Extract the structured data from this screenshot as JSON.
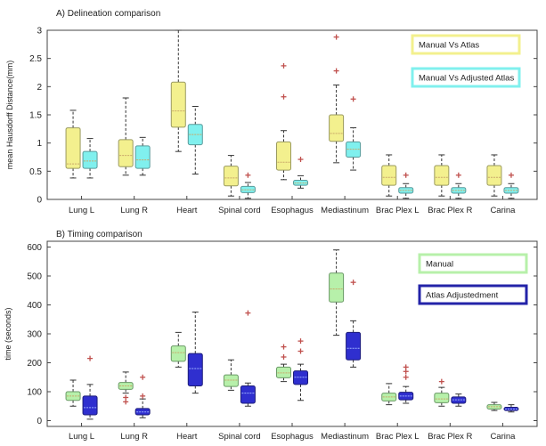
{
  "chart_data": [
    {
      "type": "boxplot",
      "title": "A) Delineation comparison",
      "xlabel": "",
      "ylabel": "mean Hausdorff Distance(mm)",
      "ylim": [
        0,
        3
      ],
      "yticks": [
        "0",
        "0.5",
        "1",
        "1.5",
        "2",
        "2.5",
        "3"
      ],
      "categories": [
        "Lung L",
        "Lung R",
        "Heart",
        "Spinal cord",
        "Esophagus",
        "Mediastinum",
        "Brac Plex L",
        "Brac Plex R",
        "Carina"
      ],
      "legend": {
        "position": "top-right"
      },
      "series": [
        {
          "name": "Manual Vs Atlas",
          "fill": "#f3f08e",
          "edge": "#9a9a60",
          "boxes": [
            {
              "whislo": 0.38,
              "q1": 0.55,
              "med": 0.63,
              "q3": 1.27,
              "whishi": 1.58,
              "fliers": []
            },
            {
              "whislo": 0.43,
              "q1": 0.58,
              "med": 0.78,
              "q3": 1.06,
              "whishi": 1.8,
              "fliers": []
            },
            {
              "whislo": 0.85,
              "q1": 1.28,
              "med": 1.57,
              "q3": 2.08,
              "whishi": 3.0,
              "fliers": []
            },
            {
              "whislo": 0.06,
              "q1": 0.24,
              "med": 0.38,
              "q3": 0.59,
              "whishi": 0.78,
              "fliers": []
            },
            {
              "whislo": 0.35,
              "q1": 0.52,
              "med": 0.66,
              "q3": 1.02,
              "whishi": 1.22,
              "fliers": [
                1.82,
                2.37
              ]
            },
            {
              "whislo": 0.65,
              "q1": 1.03,
              "med": 1.17,
              "q3": 1.5,
              "whishi": 2.03,
              "fliers": [
                2.28,
                2.88
              ]
            },
            {
              "whislo": 0.06,
              "q1": 0.25,
              "med": 0.39,
              "q3": 0.6,
              "whishi": 0.79,
              "fliers": []
            },
            {
              "whislo": 0.06,
              "q1": 0.25,
              "med": 0.39,
              "q3": 0.6,
              "whishi": 0.79,
              "fliers": []
            },
            {
              "whislo": 0.06,
              "q1": 0.25,
              "med": 0.39,
              "q3": 0.6,
              "whishi": 0.79,
              "fliers": []
            }
          ]
        },
        {
          "name": "Manual Vs Adjusted Atlas",
          "fill": "#80f0ee",
          "edge": "#5a9a9a",
          "boxes": [
            {
              "whislo": 0.38,
              "q1": 0.55,
              "med": 0.68,
              "q3": 0.85,
              "whishi": 1.08,
              "fliers": []
            },
            {
              "whislo": 0.43,
              "q1": 0.55,
              "med": 0.7,
              "q3": 0.95,
              "whishi": 1.1,
              "fliers": []
            },
            {
              "whislo": 0.45,
              "q1": 0.97,
              "med": 1.15,
              "q3": 1.33,
              "whishi": 1.65,
              "fliers": []
            },
            {
              "whislo": 0.02,
              "q1": 0.12,
              "med": 0.17,
              "q3": 0.23,
              "whishi": 0.3,
              "fliers": [
                0.43
              ]
            },
            {
              "whislo": 0.2,
              "q1": 0.25,
              "med": 0.29,
              "q3": 0.34,
              "whishi": 0.42,
              "fliers": [
                0.71
              ]
            },
            {
              "whislo": 0.52,
              "q1": 0.75,
              "med": 0.89,
              "q3": 1.02,
              "whishi": 1.27,
              "fliers": [
                1.78
              ]
            },
            {
              "whislo": 0.02,
              "q1": 0.11,
              "med": 0.16,
              "q3": 0.21,
              "whishi": 0.28,
              "fliers": [
                0.43
              ]
            },
            {
              "whislo": 0.02,
              "q1": 0.11,
              "med": 0.16,
              "q3": 0.21,
              "whishi": 0.28,
              "fliers": [
                0.43
              ]
            },
            {
              "whislo": 0.02,
              "q1": 0.11,
              "med": 0.16,
              "q3": 0.21,
              "whishi": 0.28,
              "fliers": [
                0.43
              ]
            }
          ]
        }
      ]
    },
    {
      "type": "boxplot",
      "title": "B) Timing comparison",
      "xlabel": "",
      "ylabel": "time (seconds)",
      "ylim": [
        -20,
        620
      ],
      "yticks": [
        "0",
        "100",
        "200",
        "300",
        "400",
        "500",
        "600"
      ],
      "categories": [
        "Lung L",
        "Lung R",
        "Heart",
        "Spinal cord",
        "Esophagus",
        "Mediastinum",
        "Brac Plex L",
        "Brac Plex R",
        "Carina"
      ],
      "legend": {
        "position": "top-right"
      },
      "series": [
        {
          "name": "Manual",
          "fill": "#b7f0aa",
          "edge": "#6a9a66",
          "boxes": [
            {
              "whislo": 50,
              "q1": 70,
              "med": 85,
              "q3": 100,
              "whishi": 140,
              "fliers": []
            },
            {
              "whislo": 95,
              "q1": 108,
              "med": 120,
              "q3": 132,
              "whishi": 168,
              "fliers": [
                65,
                80
              ]
            },
            {
              "whislo": 185,
              "q1": 205,
              "med": 235,
              "q3": 258,
              "whishi": 305,
              "fliers": []
            },
            {
              "whislo": 105,
              "q1": 118,
              "med": 140,
              "q3": 158,
              "whishi": 210,
              "fliers": []
            },
            {
              "whislo": 135,
              "q1": 148,
              "med": 165,
              "q3": 185,
              "whishi": 195,
              "fliers": [
                220,
                255
              ]
            },
            {
              "whislo": 295,
              "q1": 410,
              "med": 455,
              "q3": 510,
              "whishi": 590,
              "fliers": []
            },
            {
              "whislo": 55,
              "q1": 68,
              "med": 82,
              "q3": 95,
              "whishi": 128,
              "fliers": []
            },
            {
              "whislo": 50,
              "q1": 62,
              "med": 75,
              "q3": 95,
              "whishi": 115,
              "fliers": [
                135
              ]
            },
            {
              "whislo": 35,
              "q1": 40,
              "med": 48,
              "q3": 55,
              "whishi": 63,
              "fliers": []
            }
          ]
        },
        {
          "name": "Atlas Adjustedment",
          "fill": "#2f2fcf",
          "edge": "#1c1c7a",
          "boxes": [
            {
              "whislo": 5,
              "q1": 20,
              "med": 45,
              "q3": 85,
              "whishi": 125,
              "fliers": [
                215
              ]
            },
            {
              "whislo": 10,
              "q1": 20,
              "med": 30,
              "q3": 42,
              "whishi": 75,
              "fliers": [
                85,
                150
              ]
            },
            {
              "whislo": 95,
              "q1": 120,
              "med": 180,
              "q3": 232,
              "whishi": 375,
              "fliers": []
            },
            {
              "whislo": 50,
              "q1": 60,
              "med": 95,
              "q3": 120,
              "whishi": 130,
              "fliers": [
                372
              ]
            },
            {
              "whislo": 70,
              "q1": 125,
              "med": 150,
              "q3": 172,
              "whishi": 195,
              "fliers": [
                240,
                275
              ]
            },
            {
              "whislo": 185,
              "q1": 210,
              "med": 250,
              "q3": 305,
              "whishi": 345,
              "fliers": [
                478
              ]
            },
            {
              "whislo": 60,
              "q1": 72,
              "med": 85,
              "q3": 98,
              "whishi": 118,
              "fliers": [
                150,
                170,
                185
              ]
            },
            {
              "whislo": 50,
              "q1": 60,
              "med": 72,
              "q3": 82,
              "whishi": 92,
              "fliers": []
            },
            {
              "whislo": 30,
              "q1": 35,
              "med": 40,
              "q3": 46,
              "whishi": 55,
              "fliers": []
            }
          ]
        }
      ]
    }
  ]
}
